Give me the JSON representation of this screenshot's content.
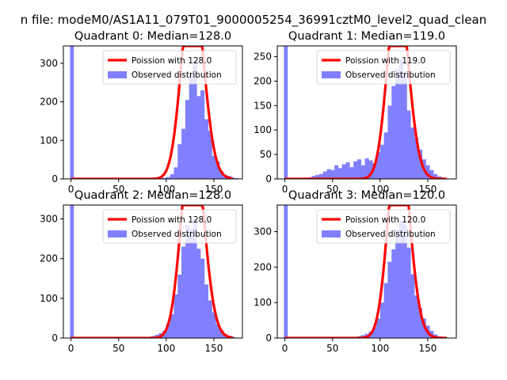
{
  "suptitle": "n file: modeM0/AS1A11_079T01_9000005254_36991cztM0_level2_quad_clean",
  "colors": {
    "hist": "#8080ff",
    "fit": "#ff0000",
    "frame": "#000000"
  },
  "chart_data": [
    {
      "type": "histogram",
      "title": "Quadrant 0: Median=128.0",
      "xlim": [
        -8,
        180
      ],
      "ylim": [
        0,
        345
      ],
      "xticks": [
        "0",
        "50",
        "100",
        "150"
      ],
      "xtick_values": [
        0,
        50,
        100,
        150
      ],
      "yticks": [
        "0",
        "100",
        "200",
        "300"
      ],
      "ytick_values": [
        0,
        100,
        200,
        300
      ],
      "legend": {
        "placement": "top-right",
        "fit_label": "Poission with 128.0",
        "hist_label": "Observed distribution"
      },
      "zero_bin": 345,
      "bins": [
        [
          80,
          0
        ],
        [
          84,
          0
        ],
        [
          88,
          2
        ],
        [
          92,
          2
        ],
        [
          96,
          3
        ],
        [
          100,
          5
        ],
        [
          104,
          12
        ],
        [
          108,
          30
        ],
        [
          112,
          90
        ],
        [
          116,
          130
        ],
        [
          120,
          205
        ],
        [
          124,
          270
        ],
        [
          128,
          305
        ],
        [
          132,
          215
        ],
        [
          136,
          230
        ],
        [
          140,
          155
        ],
        [
          144,
          125
        ],
        [
          148,
          60
        ],
        [
          152,
          45
        ],
        [
          156,
          20
        ],
        [
          160,
          10
        ],
        [
          164,
          8
        ],
        [
          168,
          3
        ],
        [
          172,
          2
        ]
      ],
      "poisson_mean": 128,
      "poisson_scale": 14700,
      "poisson_range": [
        0,
        170
      ]
    },
    {
      "type": "histogram",
      "title": "Quadrant 1: Median=119.0",
      "xlim": [
        -8,
        180
      ],
      "ylim": [
        0,
        272
      ],
      "xticks": [
        "0",
        "50",
        "100",
        "150"
      ],
      "xtick_values": [
        0,
        50,
        100,
        150
      ],
      "yticks": [
        "0",
        "50",
        "100",
        "150",
        "200",
        "250"
      ],
      "ytick_values": [
        0,
        50,
        100,
        150,
        200,
        250
      ],
      "legend": {
        "placement": "top-right",
        "fit_label": "Poission with 119.0",
        "hist_label": "Observed distribution"
      },
      "zero_bin": 272,
      "bins": [
        [
          16,
          1
        ],
        [
          20,
          2
        ],
        [
          24,
          3
        ],
        [
          28,
          6
        ],
        [
          32,
          8
        ],
        [
          36,
          10
        ],
        [
          40,
          15
        ],
        [
          44,
          20
        ],
        [
          48,
          18
        ],
        [
          52,
          28
        ],
        [
          56,
          22
        ],
        [
          60,
          30
        ],
        [
          64,
          34
        ],
        [
          68,
          24
        ],
        [
          72,
          36
        ],
        [
          76,
          40
        ],
        [
          80,
          28
        ],
        [
          84,
          42
        ],
        [
          88,
          38
        ],
        [
          92,
          32
        ],
        [
          96,
          55
        ],
        [
          100,
          70
        ],
        [
          104,
          95
        ],
        [
          108,
          150
        ],
        [
          112,
          190
        ],
        [
          116,
          225
        ],
        [
          120,
          245
        ],
        [
          124,
          215
        ],
        [
          128,
          140
        ],
        [
          132,
          105
        ],
        [
          136,
          85
        ],
        [
          140,
          60
        ],
        [
          144,
          40
        ],
        [
          148,
          28
        ],
        [
          152,
          18
        ],
        [
          156,
          10
        ],
        [
          160,
          5
        ],
        [
          164,
          3
        ]
      ],
      "poisson_mean": 119,
      "poisson_scale": 10700,
      "poisson_range": [
        0,
        170
      ]
    },
    {
      "type": "histogram",
      "title": "Quadrant 2: Median=128.0",
      "xlim": [
        -8,
        180
      ],
      "ylim": [
        0,
        335
      ],
      "xticks": [
        "0",
        "50",
        "100",
        "150"
      ],
      "xtick_values": [
        0,
        50,
        100,
        150
      ],
      "yticks": [
        "0",
        "100",
        "200",
        "300"
      ],
      "ytick_values": [
        0,
        100,
        200,
        300
      ],
      "legend": {
        "placement": "top-right",
        "fit_label": "Poission with 128.0",
        "hist_label": "Observed distribution"
      },
      "zero_bin": 335,
      "bins": [
        [
          72,
          1
        ],
        [
          76,
          2
        ],
        [
          80,
          3
        ],
        [
          84,
          5
        ],
        [
          88,
          8
        ],
        [
          92,
          12
        ],
        [
          96,
          18
        ],
        [
          100,
          35
        ],
        [
          104,
          60
        ],
        [
          108,
          110
        ],
        [
          112,
          160
        ],
        [
          116,
          230
        ],
        [
          120,
          285
        ],
        [
          124,
          275
        ],
        [
          128,
          300
        ],
        [
          132,
          225
        ],
        [
          136,
          200
        ],
        [
          140,
          135
        ],
        [
          144,
          95
        ],
        [
          148,
          65
        ],
        [
          152,
          35
        ],
        [
          156,
          20
        ],
        [
          160,
          10
        ],
        [
          164,
          6
        ],
        [
          168,
          3
        ],
        [
          172,
          1
        ]
      ],
      "poisson_mean": 128,
      "poisson_scale": 15000,
      "poisson_range": [
        0,
        170
      ]
    },
    {
      "type": "histogram",
      "title": "Quadrant 3: Median=120.0",
      "xlim": [
        -8,
        180
      ],
      "ylim": [
        0,
        375
      ],
      "xticks": [
        "0",
        "50",
        "100",
        "150"
      ],
      "xtick_values": [
        0,
        50,
        100,
        150
      ],
      "yticks": [
        "0",
        "100",
        "200",
        "300"
      ],
      "ytick_values": [
        0,
        100,
        200,
        300
      ],
      "legend": {
        "placement": "top-right",
        "fit_label": "Poission with 120.0",
        "hist_label": "Observed distribution"
      },
      "zero_bin": 375,
      "bins": [
        [
          64,
          1
        ],
        [
          68,
          2
        ],
        [
          72,
          3
        ],
        [
          76,
          5
        ],
        [
          80,
          8
        ],
        [
          84,
          12
        ],
        [
          88,
          18
        ],
        [
          92,
          30
        ],
        [
          96,
          55
        ],
        [
          100,
          100
        ],
        [
          104,
          155
        ],
        [
          108,
          215
        ],
        [
          112,
          250
        ],
        [
          116,
          305
        ],
        [
          120,
          330
        ],
        [
          124,
          320
        ],
        [
          128,
          255
        ],
        [
          132,
          180
        ],
        [
          136,
          120
        ],
        [
          140,
          85
        ],
        [
          144,
          55
        ],
        [
          148,
          35
        ],
        [
          152,
          20
        ],
        [
          156,
          10
        ],
        [
          160,
          5
        ],
        [
          164,
          2
        ]
      ],
      "poisson_mean": 120,
      "poisson_scale": 16000,
      "poisson_range": [
        0,
        170
      ]
    }
  ]
}
